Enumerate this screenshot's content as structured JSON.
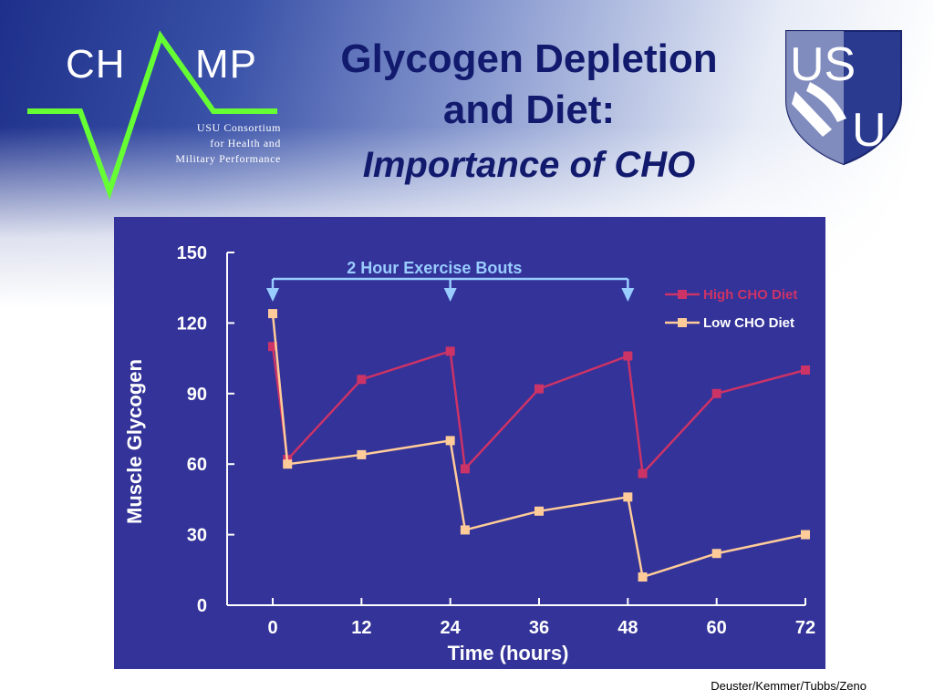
{
  "header": {
    "logo_left": {
      "name_prefix": "CH",
      "name_suffix": "MP",
      "line1": "USU Consortium",
      "line2": "for Health and",
      "line3": "Military Performance"
    },
    "title_line1": "Glycogen Depletion",
    "title_line2": "and Diet:",
    "title_line3": "Importance of CHO",
    "logo_right": {
      "text_top": "US",
      "text_bottom": "U"
    }
  },
  "footer": {
    "credit": "Deuster/Kemmer/Tubbs/Zeno"
  },
  "colors": {
    "panel_bg": "#333399",
    "high_cho": "#cc3366",
    "low_cho": "#ffcc99",
    "annotation": "#99ccff",
    "title": "#121a6e",
    "logo_green": "#66ff33"
  },
  "chart_data": {
    "type": "line",
    "title": "",
    "xlabel": "Time  (hours)",
    "ylabel": "Muscle Glycogen",
    "xlim": [
      0,
      72
    ],
    "ylim": [
      0,
      150
    ],
    "x_ticks": [
      0,
      12,
      24,
      36,
      48,
      60,
      72
    ],
    "y_ticks": [
      0,
      30,
      60,
      90,
      120,
      150
    ],
    "grid": false,
    "legend_position": "top-right",
    "annotation": {
      "label": "2 Hour Exercise Bouts",
      "arrow_x": [
        0,
        24,
        48
      ]
    },
    "series": [
      {
        "name": "High CHO Diet",
        "color": "#cc3366",
        "points": [
          [
            0,
            110
          ],
          [
            2,
            62
          ],
          [
            12,
            96
          ],
          [
            24,
            108
          ],
          [
            26,
            58
          ],
          [
            36,
            92
          ],
          [
            48,
            106
          ],
          [
            50,
            56
          ],
          [
            60,
            90
          ],
          [
            72,
            100
          ]
        ]
      },
      {
        "name": "Low CHO Diet",
        "color": "#ffcc99",
        "points": [
          [
            0,
            124
          ],
          [
            2,
            60
          ],
          [
            12,
            64
          ],
          [
            24,
            70
          ],
          [
            26,
            32
          ],
          [
            36,
            40
          ],
          [
            48,
            46
          ],
          [
            50,
            12
          ],
          [
            60,
            22
          ],
          [
            72,
            30
          ]
        ]
      }
    ]
  }
}
